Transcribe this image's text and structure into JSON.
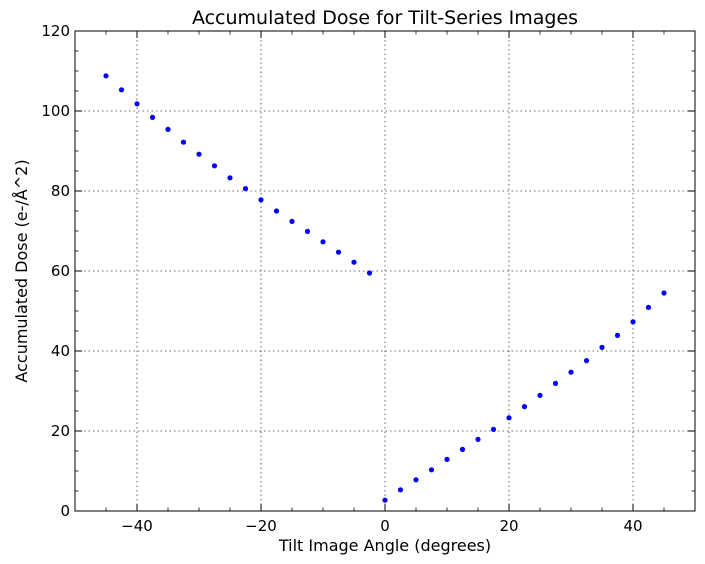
{
  "chart_data": {
    "type": "scatter",
    "title": "Accumulated Dose for Tilt-Series Images",
    "xlabel": "Tilt Image Angle (degrees)",
    "ylabel": "Accumulated Dose (e-/Å^2)",
    "xlim": [
      -50,
      50
    ],
    "ylim": [
      0,
      120
    ],
    "x_ticks": [
      -40,
      -20,
      0,
      20,
      40
    ],
    "x_tick_labels": [
      "−40",
      "−20",
      "0",
      "20",
      "40"
    ],
    "y_ticks": [
      0,
      20,
      40,
      60,
      80,
      100,
      120
    ],
    "y_tick_labels": [
      "0",
      "20",
      "40",
      "60",
      "80",
      "100",
      "120"
    ],
    "grid": true,
    "legend": "none",
    "marker_color": "#0000ff",
    "series": [
      {
        "x": [
          0,
          2.5,
          5,
          7.5,
          10,
          12.5,
          15,
          17.5,
          20,
          22.5,
          25,
          27.5,
          30,
          32.5,
          35,
          37.5,
          40,
          42.5,
          45,
          -2.5,
          -5,
          -7.5,
          -10,
          -12.5,
          -15,
          -17.5,
          -20,
          -22.5,
          -25,
          -27.5,
          -30,
          -32.5,
          -35,
          -37.5,
          -40,
          -42.5,
          -45
        ],
        "y": [
          2.7,
          5.3,
          7.8,
          10.3,
          12.9,
          15.4,
          17.9,
          20.4,
          23.3,
          26.1,
          28.9,
          31.9,
          34.7,
          37.6,
          40.9,
          43.9,
          47.3,
          50.9,
          54.5,
          59.5,
          62.2,
          64.7,
          67.3,
          69.9,
          72.4,
          75.0,
          77.8,
          80.6,
          83.3,
          86.3,
          89.2,
          92.2,
          95.4,
          98.4,
          101.8,
          105.3,
          108.8
        ]
      }
    ]
  }
}
